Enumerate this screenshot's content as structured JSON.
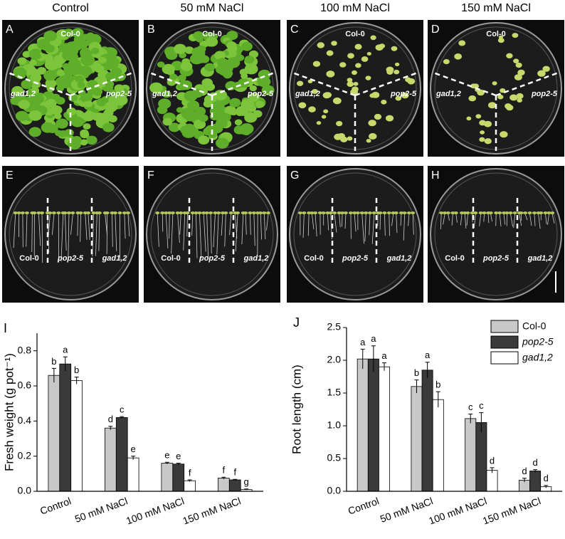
{
  "column_titles": [
    "Control",
    "50 mM NaCl",
    "100 mM NaCl",
    "150 mM NaCl"
  ],
  "photo_panels": [
    {
      "letter": "A",
      "labels": [
        "Col-0",
        "gad1,2",
        "pop2-5"
      ]
    },
    {
      "letter": "B",
      "labels": [
        "Col-0",
        "gad1,2",
        "pop2-5"
      ]
    },
    {
      "letter": "C",
      "labels": [
        "Col-0",
        "gad1,2",
        "pop2-5"
      ]
    },
    {
      "letter": "D",
      "labels": [
        "Col-0",
        "gad1,2",
        "pop2-5"
      ]
    },
    {
      "letter": "E",
      "labels": [
        "Col-0",
        "pop2-5",
        "gad1,2"
      ]
    },
    {
      "letter": "F",
      "labels": [
        "Col-0",
        "pop2-5",
        "gad1,2"
      ]
    },
    {
      "letter": "G",
      "labels": [
        "Col-0",
        "pop2-5",
        "gad1,2"
      ]
    },
    {
      "letter": "H",
      "labels": [
        "Col-0",
        "pop2-5",
        "gad1,2"
      ]
    }
  ],
  "chart_data": [
    {
      "type": "bar",
      "letter": "I",
      "y_label": "Fresh weight (g pot⁻¹)",
      "categories": [
        "Control",
        "50 mM NaCl",
        "100 mM NaCl",
        "150 mM NaCl"
      ],
      "series": [
        {
          "name": "Col-0",
          "color": "#c8c8c8",
          "values": [
            0.66,
            0.36,
            0.16,
            0.075
          ],
          "errors": [
            0.04,
            0.01,
            0.005,
            0.005
          ],
          "significance": [
            "b",
            "d",
            "e",
            "f"
          ]
        },
        {
          "name": "pop2-5",
          "color": "#3a3a3a",
          "values": [
            0.725,
            0.42,
            0.155,
            0.065
          ],
          "errors": [
            0.04,
            0.005,
            0.005,
            0.003
          ],
          "significance": [
            "a",
            "c",
            "e",
            "f"
          ]
        },
        {
          "name": "gad1,2",
          "color": "#ffffff",
          "values": [
            0.63,
            0.19,
            0.06,
            0.01
          ],
          "errors": [
            0.02,
            0.01,
            0.005,
            0.003
          ],
          "significance": [
            "b",
            "e",
            "f",
            "g"
          ]
        }
      ],
      "ylim": [
        0,
        0.9
      ],
      "yticks": [
        {
          "value": 0,
          "label": "0.0"
        },
        0.2,
        0.4,
        0.6,
        0.8
      ]
    },
    {
      "type": "bar",
      "letter": "J",
      "y_label": "Root length (cm)",
      "categories": [
        "Control",
        "50 mM NaCl",
        "100 mM NaCl",
        "150 mM NaCl"
      ],
      "series": [
        {
          "name": "Col-0",
          "color": "#c8c8c8",
          "values": [
            2.02,
            1.6,
            1.11,
            0.17
          ],
          "errors": [
            0.15,
            0.1,
            0.07,
            0.03
          ],
          "significance": [
            "a",
            "b",
            "c",
            "d"
          ]
        },
        {
          "name": "pop2-5",
          "color": "#3a3a3a",
          "values": [
            2.02,
            1.85,
            1.05,
            0.31
          ],
          "errors": [
            0.2,
            0.12,
            0.15,
            0.02
          ],
          "significance": [
            "a",
            "a",
            "c",
            "d"
          ]
        },
        {
          "name": "gad1,2",
          "color": "#ffffff",
          "values": [
            1.9,
            1.4,
            0.32,
            0.07
          ],
          "errors": [
            0.06,
            0.12,
            0.04,
            0.02
          ],
          "significance": [
            "a",
            "b",
            "d",
            "d"
          ]
        }
      ],
      "ylim": [
        0,
        2.5
      ],
      "yticks": [
        {
          "value": 0,
          "label": "0.0"
        },
        0.5,
        {
          "value": 1,
          "label": "1.0"
        },
        1.5,
        {
          "value": 2,
          "label": "2.0"
        },
        2.5
      ],
      "legend": "top-right"
    }
  ]
}
